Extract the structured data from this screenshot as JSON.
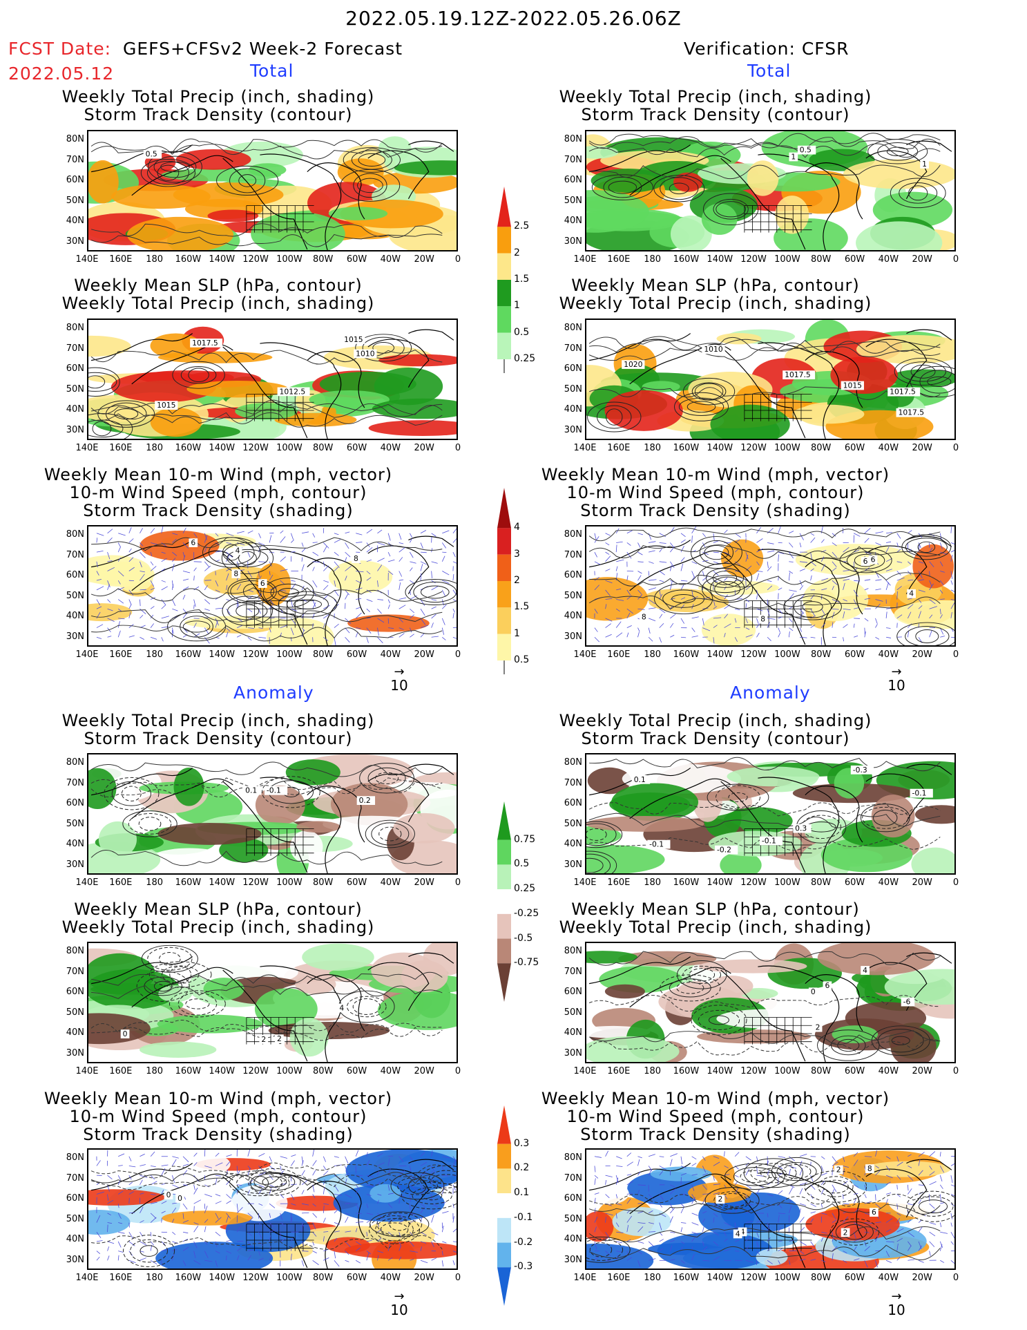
{
  "header": {
    "main_title": "2022.05.19.12Z-2022.05.26.06Z",
    "fcst_label": "FCST Date:",
    "fcst_model": "GEFS+CFSv2 Week-2 Forecast",
    "fcst_date": "2022.05.12",
    "verification": "Verification: CFSR"
  },
  "sections": {
    "total": "Total",
    "anomaly": "Anomaly"
  },
  "titles": {
    "precip_storm": [
      "Weekly Total Precip (inch, shading)",
      "Storm Track Density (contour)"
    ],
    "slp_precip": [
      "Weekly Mean SLP (hPa, contour)",
      "Weekly Total Precip (inch, shading)"
    ],
    "wind_storm": [
      "Weekly Mean 10-m Wind (mph, vector)",
      "10-m Wind Speed (mph, contour)",
      "Storm Track Density (shading)"
    ]
  },
  "axes": {
    "lat_labels": [
      "80N",
      "70N",
      "60N",
      "50N",
      "40N",
      "30N"
    ],
    "lon_labels": [
      "140E",
      "160E",
      "180",
      "160W",
      "140W",
      "120W",
      "100W",
      "80W",
      "60W",
      "40W",
      "20W",
      "0"
    ]
  },
  "vector_reference": "10",
  "colorbars": {
    "precip_total": {
      "labels": [
        "2.5",
        "2",
        "1.5",
        "1",
        "0.5",
        "0.25"
      ],
      "colors": [
        "#e3241b",
        "#f99e0e",
        "#fde78a",
        "#1f9b1f",
        "#5fd95f",
        "#b9f5b9"
      ]
    },
    "storm_total": {
      "labels": [
        "4",
        "3",
        "2",
        "1.5",
        "1",
        "0.5"
      ],
      "colors": [
        "#9e0d0d",
        "#d92020",
        "#f06018",
        "#f9a11a",
        "#fbcf5c",
        "#fef6a8"
      ]
    },
    "precip_anom": {
      "labels": [
        "0.75",
        "0.5",
        "0.25",
        "-0.25",
        "-0.5",
        "-0.75"
      ],
      "colors": [
        "#1e9a1e",
        "#5fd65f",
        "#b8f2b8",
        "#ffffff",
        "#e6c4bb",
        "#b98777",
        "#6b4035"
      ]
    },
    "storm_anom": {
      "labels": [
        "0.3",
        "0.2",
        "0.1",
        "-0.1",
        "-0.2",
        "-0.3"
      ],
      "colors": [
        "#ec3a18",
        "#f99e1d",
        "#fde38a",
        "#ffffff",
        "#bde5f7",
        "#62b3ec",
        "#1a64d6"
      ]
    }
  },
  "panels": {
    "fcst_total_precip": {
      "labels": [
        "0.5"
      ]
    },
    "fcst_total_slp": {
      "labels": [
        "1015",
        "1015",
        "1017.5",
        "1010",
        "1012.5"
      ]
    },
    "fcst_total_wind": {
      "labels": [
        "8",
        "6",
        "4",
        "6",
        "8"
      ]
    },
    "cfsr_total_precip": {
      "labels": [
        "1",
        "0.5",
        "1"
      ]
    },
    "cfsr_total_slp": {
      "labels": [
        "1010",
        "1017.5",
        "1020",
        "1017.5",
        "1015",
        "1017.5"
      ]
    },
    "cfsr_total_wind": {
      "labels": [
        "8",
        "6",
        "4",
        "8",
        "6"
      ]
    },
    "fcst_anom_precip": {
      "labels": [
        "-0.1",
        "0.2",
        "0.1"
      ]
    },
    "fcst_anom_slp": {
      "labels": [
        "0",
        "2",
        "0",
        "2",
        "4"
      ]
    },
    "fcst_anom_wind": {
      "labels": [
        "0",
        "0"
      ]
    },
    "cfsr_anom_precip": {
      "labels": [
        "-0.1",
        "-0.2",
        "-0.3",
        "-0.1",
        "-0.1",
        "0.1",
        "0.3"
      ]
    },
    "cfsr_anom_slp": {
      "labels": [
        "6",
        "2",
        "4",
        "0",
        "-6"
      ]
    },
    "cfsr_anom_wind": {
      "labels": [
        "2",
        "2",
        "4",
        "4",
        "8",
        "2",
        "6"
      ]
    }
  }
}
